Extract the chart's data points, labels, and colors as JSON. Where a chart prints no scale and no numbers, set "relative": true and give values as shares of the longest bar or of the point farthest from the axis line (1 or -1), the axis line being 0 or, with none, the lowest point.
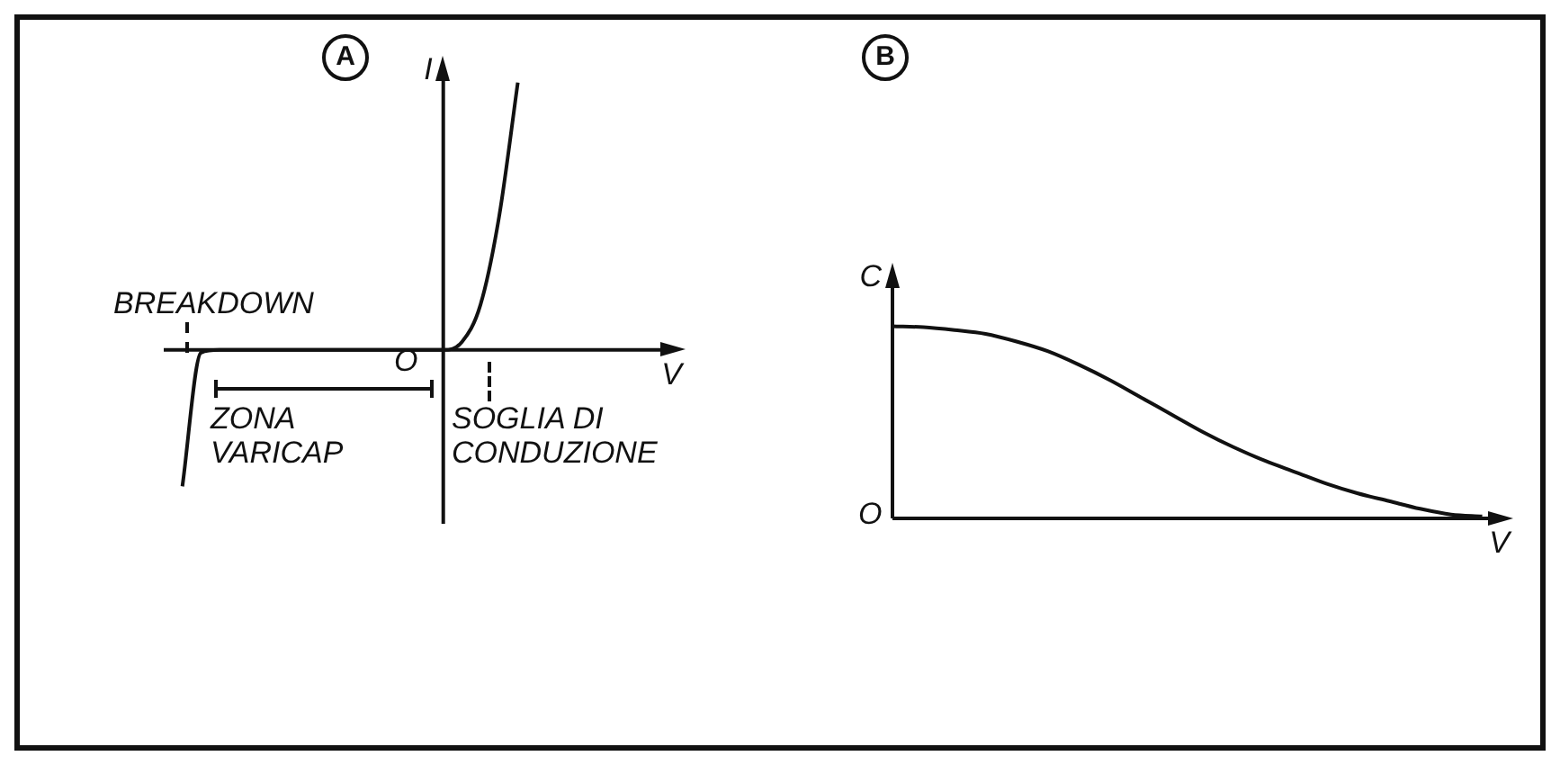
{
  "chart_data": [
    {
      "type": "line",
      "title": "A",
      "xlabel": "V",
      "ylabel": "I",
      "relative": true,
      "color": "#111111",
      "categories": [
        null,
        null,
        null,
        null,
        null,
        null,
        null,
        null,
        null,
        null,
        null,
        null,
        null,
        null,
        null,
        null,
        null,
        null,
        null,
        null,
        null,
        null,
        null,
        null,
        null,
        null,
        null,
        null,
        null
      ],
      "values": [
        null,
        -0.51,
        -0.01,
        0,
        0,
        0,
        0,
        0,
        0,
        0,
        0,
        0,
        0,
        0,
        0,
        0,
        0.03,
        0.17,
        0.5,
        1,
        null,
        null,
        null,
        null,
        null,
        null,
        null,
        null,
        null
      ],
      "annotations": [
        "O",
        "BREAKDOWN",
        "ZONA VARICAP",
        "SOGLIA DI CONDUZIONE"
      ]
    },
    {
      "type": "line",
      "title": "B",
      "xlabel": "V",
      "ylabel": "C",
      "relative": true,
      "color": "#111111",
      "categories": [
        null,
        null,
        null,
        null,
        null,
        null,
        null,
        null,
        null,
        null,
        null,
        null,
        null,
        null,
        null,
        null,
        null,
        null,
        null,
        null,
        null
      ],
      "values": [
        1,
        0.995,
        0.98,
        0.96,
        0.92,
        0.87,
        0.8,
        0.72,
        0.63,
        0.54,
        0.45,
        0.37,
        0.3,
        0.24,
        0.18,
        0.13,
        0.09,
        0.05,
        0.02,
        0.01,
        null
      ],
      "annotations": [
        "O"
      ]
    }
  ]
}
